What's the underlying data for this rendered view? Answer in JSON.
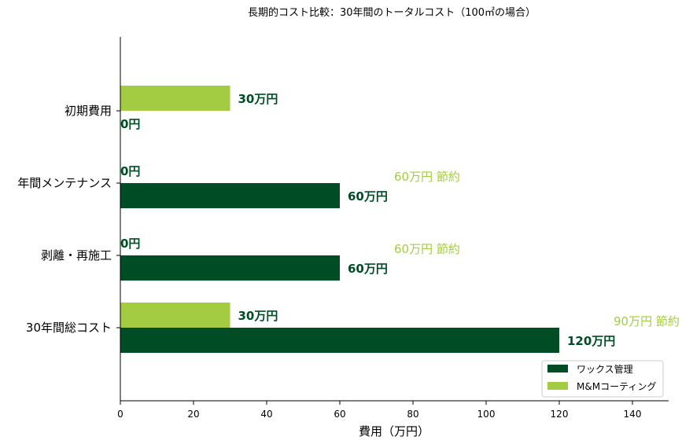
{
  "chart_data": {
    "type": "bar",
    "orientation": "horizontal",
    "title": "長期的コスト比較：30年間のトータルコスト（100㎡の場合）",
    "xlabel": "費用（万円）",
    "ylabel": "",
    "xlim": [
      0,
      150
    ],
    "xticks": [
      0,
      20,
      40,
      60,
      80,
      100,
      120,
      140
    ],
    "grid": false,
    "legend_position": "bottom-right",
    "categories": [
      "初期費用",
      "年間メンテナンス",
      "剥離・再施工",
      "30年間総コスト"
    ],
    "series": [
      {
        "name": "ワックス管理",
        "color": "#004d25",
        "values": [
          0,
          60,
          60,
          120
        ],
        "labels": [
          "0円",
          "60万円",
          "60万円",
          "120万円"
        ]
      },
      {
        "name": "M&Mコーティング",
        "color": "#a4cc43",
        "values": [
          30,
          0,
          0,
          30
        ],
        "labels": [
          "30万円",
          "0円",
          "0円",
          "30万円"
        ]
      }
    ],
    "savings": [
      {
        "category_index": 1,
        "text": "60万円 節約"
      },
      {
        "category_index": 2,
        "text": "60万円 節約"
      },
      {
        "category_index": 3,
        "text": "90万円 節約"
      }
    ]
  }
}
